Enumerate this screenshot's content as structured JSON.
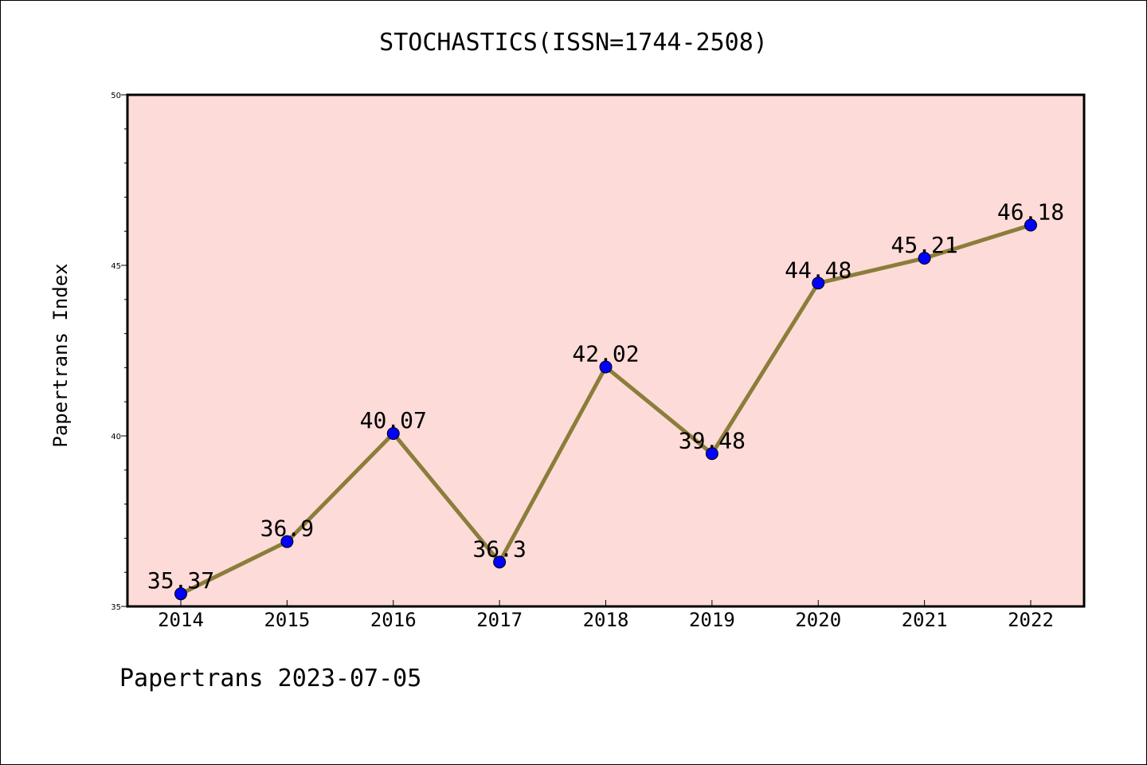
{
  "chart_data": {
    "type": "line",
    "title": "STOCHASTICS(ISSN=1744-2508)",
    "xlabel": "",
    "ylabel": "Papertrans Index",
    "categories": [
      "2014",
      "2015",
      "2016",
      "2017",
      "2018",
      "2019",
      "2020",
      "2021",
      "2022"
    ],
    "series": [
      {
        "values": [
          35.37,
          36.9,
          40.07,
          36.3,
          42.02,
          39.48,
          44.48,
          45.21,
          46.18
        ],
        "labels": [
          "35.37",
          "36.9",
          "40.07",
          "36.3",
          "42.02",
          "39.48",
          "44.48",
          "45.21",
          "46.18"
        ]
      }
    ],
    "ylim": [
      35,
      50
    ],
    "yticks": [
      "35",
      "40",
      "45",
      "50"
    ],
    "grid": false,
    "colors": {
      "plot_background": "#fddbd8",
      "line": "#8b7d3a",
      "marker": "#0000ff"
    }
  },
  "footer": "Papertrans 2023-07-05"
}
